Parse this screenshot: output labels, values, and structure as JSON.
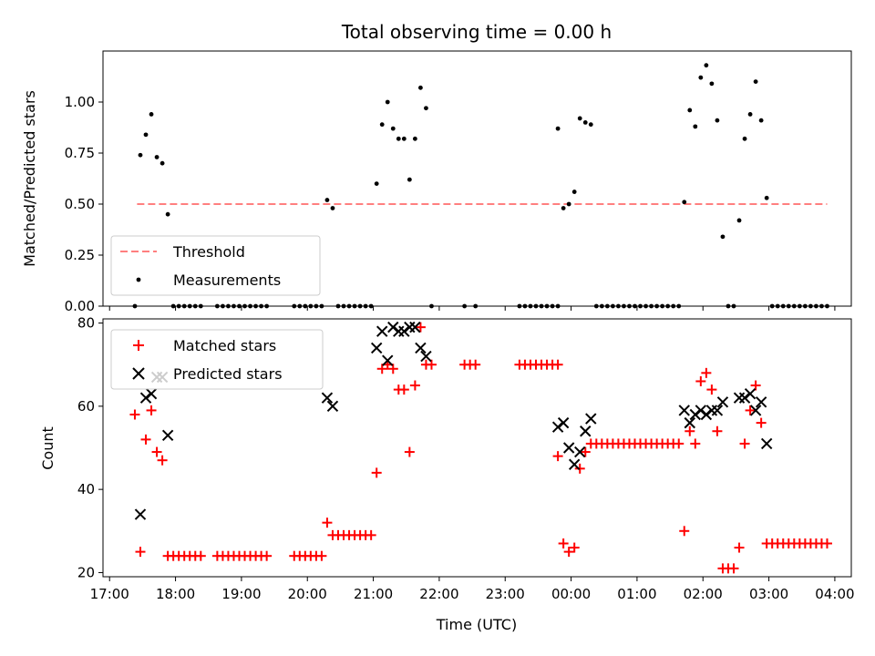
{
  "chart_data": [
    {
      "type": "scatter",
      "title": "Total observing time = 0.00 h",
      "xlabel": "",
      "ylabel": "Matched/Predicted stars",
      "xlim": [
        "17:00",
        "04:00"
      ],
      "ylim": [
        0,
        1.25
      ],
      "yticks": [
        "0.00",
        "0.25",
        "0.50",
        "0.75",
        "1.00"
      ],
      "grid": false,
      "legend_position": "lower-left",
      "threshold": {
        "name": "Threshold",
        "value": 0.5,
        "x_range": [
          "17:25",
          "03:53"
        ],
        "color": "#ff7f7f"
      },
      "series": [
        {
          "name": "Measurements",
          "marker": "dot",
          "color": "#000000",
          "points": [
            [
              "17:23",
              0
            ],
            [
              "17:28",
              0.74
            ],
            [
              "17:33",
              0.84
            ],
            [
              "17:38",
              0.94
            ],
            [
              "17:43",
              0.73
            ],
            [
              "17:48",
              0.7
            ],
            [
              "17:53",
              0.45
            ],
            [
              "17:58",
              0
            ],
            [
              "18:03",
              0
            ],
            [
              "18:08",
              0
            ],
            [
              "18:13",
              0
            ],
            [
              "18:18",
              0
            ],
            [
              "18:23",
              0
            ],
            [
              "18:38",
              0
            ],
            [
              "18:43",
              0
            ],
            [
              "18:48",
              0
            ],
            [
              "18:53",
              0
            ],
            [
              "18:58",
              0
            ],
            [
              "19:03",
              0
            ],
            [
              "19:08",
              0
            ],
            [
              "19:13",
              0
            ],
            [
              "19:18",
              0
            ],
            [
              "19:23",
              0
            ],
            [
              "19:48",
              0
            ],
            [
              "19:53",
              0
            ],
            [
              "19:58",
              0
            ],
            [
              "20:03",
              0
            ],
            [
              "20:08",
              0
            ],
            [
              "20:13",
              0
            ],
            [
              "20:18",
              0.52
            ],
            [
              "20:23",
              0.48
            ],
            [
              "20:28",
              0
            ],
            [
              "20:33",
              0
            ],
            [
              "20:38",
              0
            ],
            [
              "20:43",
              0
            ],
            [
              "20:48",
              0
            ],
            [
              "20:53",
              0
            ],
            [
              "20:58",
              0
            ],
            [
              "21:03",
              0.6
            ],
            [
              "21:08",
              0.89
            ],
            [
              "21:13",
              1.0
            ],
            [
              "21:18",
              0.87
            ],
            [
              "21:23",
              0.82
            ],
            [
              "21:28",
              0.82
            ],
            [
              "21:33",
              0.62
            ],
            [
              "21:38",
              0.82
            ],
            [
              "21:43",
              1.07
            ],
            [
              "21:48",
              0.97
            ],
            [
              "21:53",
              0
            ],
            [
              "22:23",
              0
            ],
            [
              "22:33",
              0
            ],
            [
              "23:13",
              0
            ],
            [
              "23:18",
              0
            ],
            [
              "23:23",
              0
            ],
            [
              "23:28",
              0
            ],
            [
              "23:33",
              0
            ],
            [
              "23:38",
              0
            ],
            [
              "23:43",
              0
            ],
            [
              "23:48",
              0
            ],
            [
              "23:48",
              0.87
            ],
            [
              "23:53",
              0.48
            ],
            [
              "23:58",
              0.5
            ],
            [
              "00:03",
              0.56
            ],
            [
              "00:08",
              0.92
            ],
            [
              "00:13",
              0.9
            ],
            [
              "00:18",
              0.89
            ],
            [
              "00:23",
              0
            ],
            [
              "00:28",
              0
            ],
            [
              "00:33",
              0
            ],
            [
              "00:38",
              0
            ],
            [
              "00:43",
              0
            ],
            [
              "00:48",
              0
            ],
            [
              "00:53",
              0
            ],
            [
              "00:58",
              0
            ],
            [
              "01:03",
              0
            ],
            [
              "01:08",
              0
            ],
            [
              "01:13",
              0
            ],
            [
              "01:18",
              0
            ],
            [
              "01:23",
              0
            ],
            [
              "01:28",
              0
            ],
            [
              "01:33",
              0
            ],
            [
              "01:38",
              0
            ],
            [
              "01:43",
              0.51
            ],
            [
              "01:48",
              0.96
            ],
            [
              "01:53",
              0.88
            ],
            [
              "01:58",
              1.12
            ],
            [
              "02:03",
              1.18
            ],
            [
              "02:08",
              1.09
            ],
            [
              "02:13",
              0.91
            ],
            [
              "02:18",
              0.34
            ],
            [
              "02:23",
              0
            ],
            [
              "02:28",
              0
            ],
            [
              "02:33",
              0.42
            ],
            [
              "02:38",
              0.82
            ],
            [
              "02:43",
              0.94
            ],
            [
              "02:48",
              1.1
            ],
            [
              "02:53",
              0.91
            ],
            [
              "02:58",
              0.53
            ],
            [
              "03:03",
              0
            ],
            [
              "03:08",
              0
            ],
            [
              "03:13",
              0
            ],
            [
              "03:18",
              0
            ],
            [
              "03:23",
              0
            ],
            [
              "03:28",
              0
            ],
            [
              "03:33",
              0
            ],
            [
              "03:38",
              0
            ],
            [
              "03:43",
              0
            ],
            [
              "03:48",
              0
            ],
            [
              "03:53",
              0
            ]
          ]
        }
      ]
    },
    {
      "type": "scatter",
      "title": "",
      "xlabel": "Time (UTC)",
      "ylabel": "Count",
      "xlim": [
        "17:00",
        "04:00"
      ],
      "ylim": [
        19,
        81
      ],
      "yticks": [
        "20",
        "40",
        "60",
        "80"
      ],
      "xticks": [
        "17:00",
        "18:00",
        "19:00",
        "20:00",
        "21:00",
        "22:00",
        "23:00",
        "00:00",
        "01:00",
        "02:00",
        "03:00",
        "04:00"
      ],
      "grid": false,
      "legend_position": "upper-left",
      "series": [
        {
          "name": "Matched stars",
          "marker": "plus",
          "color": "#ff0000",
          "points": [
            [
              "17:23",
              58
            ],
            [
              "17:28",
              25
            ],
            [
              "17:33",
              52
            ],
            [
              "17:38",
              59
            ],
            [
              "17:43",
              49
            ],
            [
              "17:48",
              47
            ],
            [
              "17:53",
              24
            ],
            [
              "17:58",
              24
            ],
            [
              "18:03",
              24
            ],
            [
              "18:08",
              24
            ],
            [
              "18:13",
              24
            ],
            [
              "18:18",
              24
            ],
            [
              "18:23",
              24
            ],
            [
              "18:38",
              24
            ],
            [
              "18:43",
              24
            ],
            [
              "18:48",
              24
            ],
            [
              "18:53",
              24
            ],
            [
              "18:58",
              24
            ],
            [
              "19:03",
              24
            ],
            [
              "19:08",
              24
            ],
            [
              "19:13",
              24
            ],
            [
              "19:18",
              24
            ],
            [
              "19:23",
              24
            ],
            [
              "19:48",
              24
            ],
            [
              "19:53",
              24
            ],
            [
              "19:58",
              24
            ],
            [
              "20:03",
              24
            ],
            [
              "20:08",
              24
            ],
            [
              "20:13",
              24
            ],
            [
              "20:18",
              32
            ],
            [
              "20:23",
              29
            ],
            [
              "20:28",
              29
            ],
            [
              "20:33",
              29
            ],
            [
              "20:38",
              29
            ],
            [
              "20:43",
              29
            ],
            [
              "20:48",
              29
            ],
            [
              "20:53",
              29
            ],
            [
              "20:58",
              29
            ],
            [
              "21:03",
              44
            ],
            [
              "21:08",
              69
            ],
            [
              "21:13",
              70
            ],
            [
              "21:18",
              69
            ],
            [
              "21:23",
              64
            ],
            [
              "21:28",
              64
            ],
            [
              "21:33",
              49
            ],
            [
              "21:38",
              65
            ],
            [
              "21:43",
              79
            ],
            [
              "21:48",
              70
            ],
            [
              "21:53",
              70
            ],
            [
              "22:23",
              70
            ],
            [
              "22:28",
              70
            ],
            [
              "22:33",
              70
            ],
            [
              "23:13",
              70
            ],
            [
              "23:18",
              70
            ],
            [
              "23:23",
              70
            ],
            [
              "23:28",
              70
            ],
            [
              "23:33",
              70
            ],
            [
              "23:38",
              70
            ],
            [
              "23:43",
              70
            ],
            [
              "23:48",
              70
            ],
            [
              "23:48",
              48
            ],
            [
              "23:53",
              27
            ],
            [
              "23:58",
              25
            ],
            [
              "00:03",
              26
            ],
            [
              "00:08",
              45
            ],
            [
              "00:13",
              49
            ],
            [
              "00:18",
              51
            ],
            [
              "00:23",
              51
            ],
            [
              "00:28",
              51
            ],
            [
              "00:33",
              51
            ],
            [
              "00:38",
              51
            ],
            [
              "00:43",
              51
            ],
            [
              "00:48",
              51
            ],
            [
              "00:53",
              51
            ],
            [
              "00:58",
              51
            ],
            [
              "01:03",
              51
            ],
            [
              "01:08",
              51
            ],
            [
              "01:13",
              51
            ],
            [
              "01:18",
              51
            ],
            [
              "01:23",
              51
            ],
            [
              "01:28",
              51
            ],
            [
              "01:33",
              51
            ],
            [
              "01:38",
              51
            ],
            [
              "01:43",
              30
            ],
            [
              "01:48",
              54
            ],
            [
              "01:53",
              51
            ],
            [
              "01:58",
              66
            ],
            [
              "02:03",
              68
            ],
            [
              "02:08",
              64
            ],
            [
              "02:13",
              54
            ],
            [
              "02:18",
              21
            ],
            [
              "02:23",
              21
            ],
            [
              "02:28",
              21
            ],
            [
              "02:33",
              26
            ],
            [
              "02:38",
              51
            ],
            [
              "02:43",
              59
            ],
            [
              "02:48",
              65
            ],
            [
              "02:53",
              56
            ],
            [
              "02:58",
              27
            ],
            [
              "03:03",
              27
            ],
            [
              "03:08",
              27
            ],
            [
              "03:13",
              27
            ],
            [
              "03:18",
              27
            ],
            [
              "03:23",
              27
            ],
            [
              "03:28",
              27
            ],
            [
              "03:33",
              27
            ],
            [
              "03:38",
              27
            ],
            [
              "03:43",
              27
            ],
            [
              "03:48",
              27
            ],
            [
              "03:53",
              27
            ]
          ]
        },
        {
          "name": "Predicted stars",
          "marker": "x",
          "color": "#000000",
          "points": [
            [
              "17:28",
              34
            ],
            [
              "17:33",
              62
            ],
            [
              "17:38",
              63
            ],
            [
              "17:43",
              67
            ],
            [
              "17:48",
              67
            ],
            [
              "17:53",
              53
            ],
            [
              "20:18",
              62
            ],
            [
              "20:23",
              60
            ],
            [
              "21:03",
              74
            ],
            [
              "21:08",
              78
            ],
            [
              "21:13",
              71
            ],
            [
              "21:18",
              79
            ],
            [
              "21:23",
              78
            ],
            [
              "21:28",
              78
            ],
            [
              "21:33",
              79
            ],
            [
              "21:38",
              79
            ],
            [
              "21:43",
              74
            ],
            [
              "21:48",
              72
            ],
            [
              "23:48",
              55
            ],
            [
              "23:53",
              56
            ],
            [
              "23:58",
              50
            ],
            [
              "00:03",
              46
            ],
            [
              "00:08",
              49
            ],
            [
              "00:13",
              54
            ],
            [
              "00:18",
              57
            ],
            [
              "01:43",
              59
            ],
            [
              "01:48",
              56
            ],
            [
              "01:53",
              58
            ],
            [
              "01:58",
              59
            ],
            [
              "02:03",
              58
            ],
            [
              "02:08",
              59
            ],
            [
              "02:13",
              59
            ],
            [
              "02:18",
              61
            ],
            [
              "02:33",
              62
            ],
            [
              "02:38",
              62
            ],
            [
              "02:43",
              63
            ],
            [
              "02:48",
              59
            ],
            [
              "02:53",
              61
            ],
            [
              "02:58",
              51
            ]
          ]
        }
      ]
    }
  ]
}
